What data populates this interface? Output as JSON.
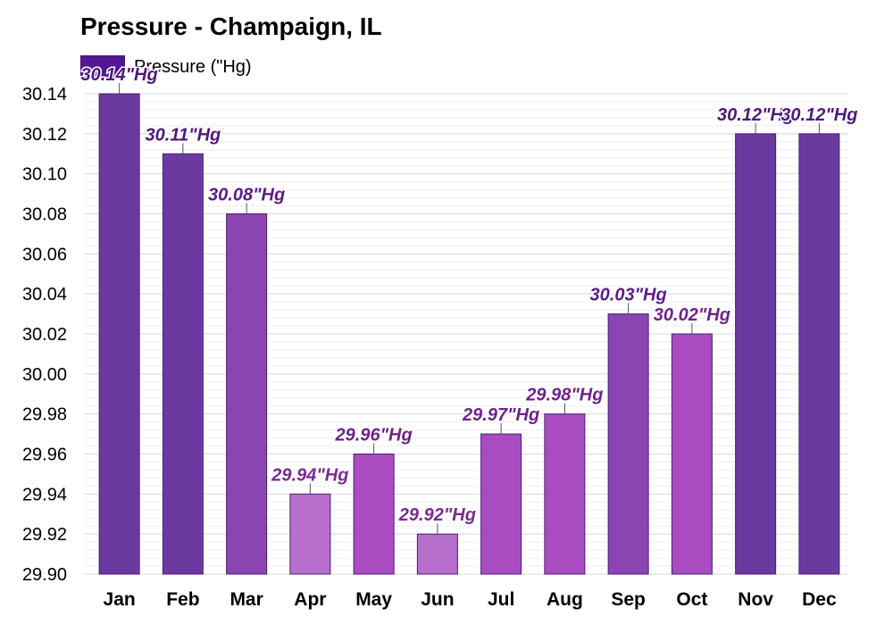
{
  "chart_data": {
    "type": "bar",
    "title": "Pressure - Champaign, IL",
    "xlabel": "",
    "ylabel": "",
    "unit": "\"Hg",
    "series": [
      {
        "name": "Pressure (\"Hg)",
        "values": [
          30.14,
          30.11,
          30.08,
          29.94,
          29.96,
          29.92,
          29.97,
          29.98,
          30.03,
          30.02,
          30.12,
          30.12
        ]
      }
    ],
    "categories": [
      "Jan",
      "Feb",
      "Mar",
      "Apr",
      "May",
      "Jun",
      "Jul",
      "Aug",
      "Sep",
      "Oct",
      "Nov",
      "Dec"
    ],
    "data_labels": [
      "30.14\"Hg",
      "30.11\"Hg",
      "30.08\"Hg",
      "29.94\"Hg",
      "29.96\"Hg",
      "29.92\"Hg",
      "29.97\"Hg",
      "29.98\"Hg",
      "30.03\"Hg",
      "30.02\"Hg",
      "30.12\"Hg",
      "30.12\"Hg"
    ],
    "y_ticks": [
      "29.90",
      "29.92",
      "29.94",
      "29.96",
      "29.98",
      "30.00",
      "30.02",
      "30.04",
      "30.06",
      "30.08",
      "30.10",
      "30.12",
      "30.14"
    ],
    "ylim": [
      29.9,
      30.14
    ],
    "grid": true,
    "legend_position": "top-left",
    "bar_colors": [
      "#6b3aa1",
      "#6b3aa1",
      "#8a45b3",
      "#b86fcd",
      "#a94cc1",
      "#b86fcd",
      "#a94cc1",
      "#a94cc1",
      "#8a45b3",
      "#a94cc1",
      "#6b3aa1",
      "#6b3aa1"
    ],
    "label_colors": [
      "#4f1a7a",
      "#4f1a7a",
      "#5b1d84",
      "#7a2b8f",
      "#6e2488",
      "#7a2b8f",
      "#6e2488",
      "#6e2488",
      "#5b1d84",
      "#6e2488",
      "#4f1a7a",
      "#4f1a7a"
    ],
    "legend_color": "#541794"
  }
}
